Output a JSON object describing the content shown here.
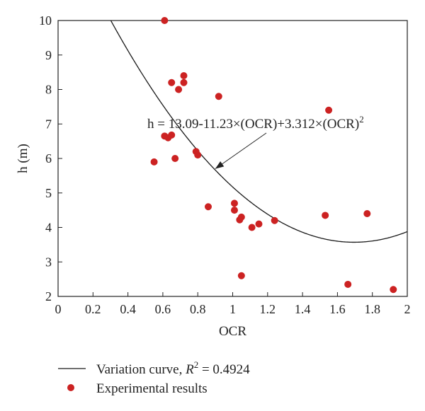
{
  "chart_data": {
    "type": "scatter",
    "title": "",
    "xlabel": "OCR",
    "ylabel": "h (m)",
    "xlim": [
      0,
      2
    ],
    "ylim": [
      2,
      10
    ],
    "xticks": [
      "0",
      "0.2",
      "0.4",
      "0.6",
      "0.8",
      "1",
      "1.2",
      "1.4",
      "1.6",
      "1.8",
      "2"
    ],
    "yticks": [
      "2",
      "3",
      "4",
      "5",
      "6",
      "7",
      "8",
      "9",
      "10"
    ],
    "grid": false,
    "legend_position": "bottom",
    "annotation": {
      "text": "h = 13.09-11.23×(OCR)+3.312×(OCR)",
      "superscript": "2",
      "arrow_target": {
        "x": 0.9,
        "y": 5.7
      }
    },
    "curve": {
      "name": "Variation curve, R² = 0.4924",
      "legend_prefix": "Variation curve, ",
      "legend_r": "R",
      "legend_sup": "2",
      "legend_suffix": " = 0.4924",
      "coefficients": [
        13.09,
        -11.23,
        3.312
      ],
      "color": "#1a1a1a"
    },
    "series": [
      {
        "name": "Experimental results",
        "color": "#cc2222",
        "points": [
          {
            "x": 0.61,
            "y": 10.0
          },
          {
            "x": 0.72,
            "y": 8.4
          },
          {
            "x": 0.65,
            "y": 8.2
          },
          {
            "x": 0.72,
            "y": 8.2
          },
          {
            "x": 0.69,
            "y": 8.0
          },
          {
            "x": 0.92,
            "y": 7.8
          },
          {
            "x": 1.55,
            "y": 7.4
          },
          {
            "x": 0.61,
            "y": 6.65
          },
          {
            "x": 0.63,
            "y": 6.6
          },
          {
            "x": 0.65,
            "y": 6.68
          },
          {
            "x": 0.79,
            "y": 6.2
          },
          {
            "x": 0.8,
            "y": 6.1
          },
          {
            "x": 0.67,
            "y": 6.0
          },
          {
            "x": 0.55,
            "y": 5.9
          },
          {
            "x": 1.01,
            "y": 4.7
          },
          {
            "x": 0.86,
            "y": 4.6
          },
          {
            "x": 1.01,
            "y": 4.5
          },
          {
            "x": 1.77,
            "y": 4.4
          },
          {
            "x": 1.53,
            "y": 4.35
          },
          {
            "x": 1.05,
            "y": 4.3
          },
          {
            "x": 1.04,
            "y": 4.22
          },
          {
            "x": 1.24,
            "y": 4.2
          },
          {
            "x": 1.15,
            "y": 4.1
          },
          {
            "x": 1.11,
            "y": 4.0
          },
          {
            "x": 1.05,
            "y": 2.6
          },
          {
            "x": 1.66,
            "y": 2.35
          },
          {
            "x": 1.92,
            "y": 2.2
          }
        ]
      }
    ]
  }
}
